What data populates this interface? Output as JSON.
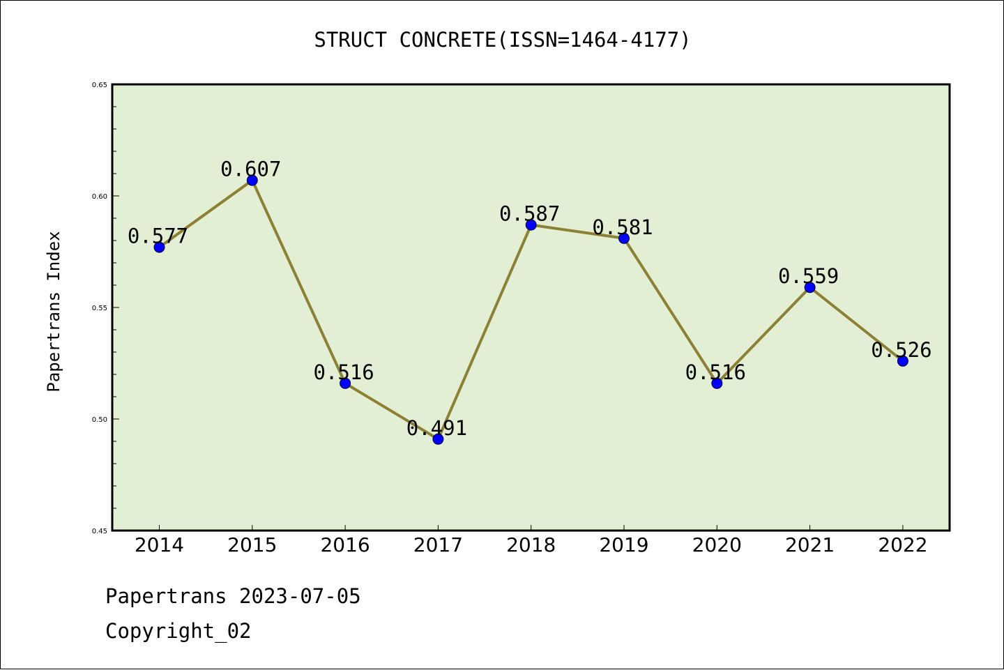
{
  "chart_data": {
    "type": "line",
    "title": "STRUCT CONCRETE(ISSN=1464-4177)",
    "xlabel": "",
    "ylabel": "Papertrans Index",
    "categories": [
      "2014",
      "2015",
      "2016",
      "2017",
      "2018",
      "2019",
      "2020",
      "2021",
      "2022"
    ],
    "values": [
      0.577,
      0.607,
      0.516,
      0.491,
      0.587,
      0.581,
      0.516,
      0.559,
      0.526
    ],
    "data_labels": [
      "0.577",
      "0.607",
      "0.516",
      "0.491",
      "0.587",
      "0.581",
      "0.516",
      "0.559",
      "0.526"
    ],
    "ylim": [
      0.45,
      0.65
    ],
    "yticks": [
      0.45,
      0.5,
      0.55,
      0.6,
      0.65
    ],
    "ytick_labels": [
      "0.45",
      "0.50",
      "0.55",
      "0.60",
      "0.65"
    ],
    "grid": false,
    "colors": {
      "line": "#8c8034",
      "marker": "#0000ff",
      "plot_background": "#e2efd5"
    }
  },
  "footer": {
    "line1": "Papertrans 2023-07-05",
    "line2": "Copyright_02"
  }
}
